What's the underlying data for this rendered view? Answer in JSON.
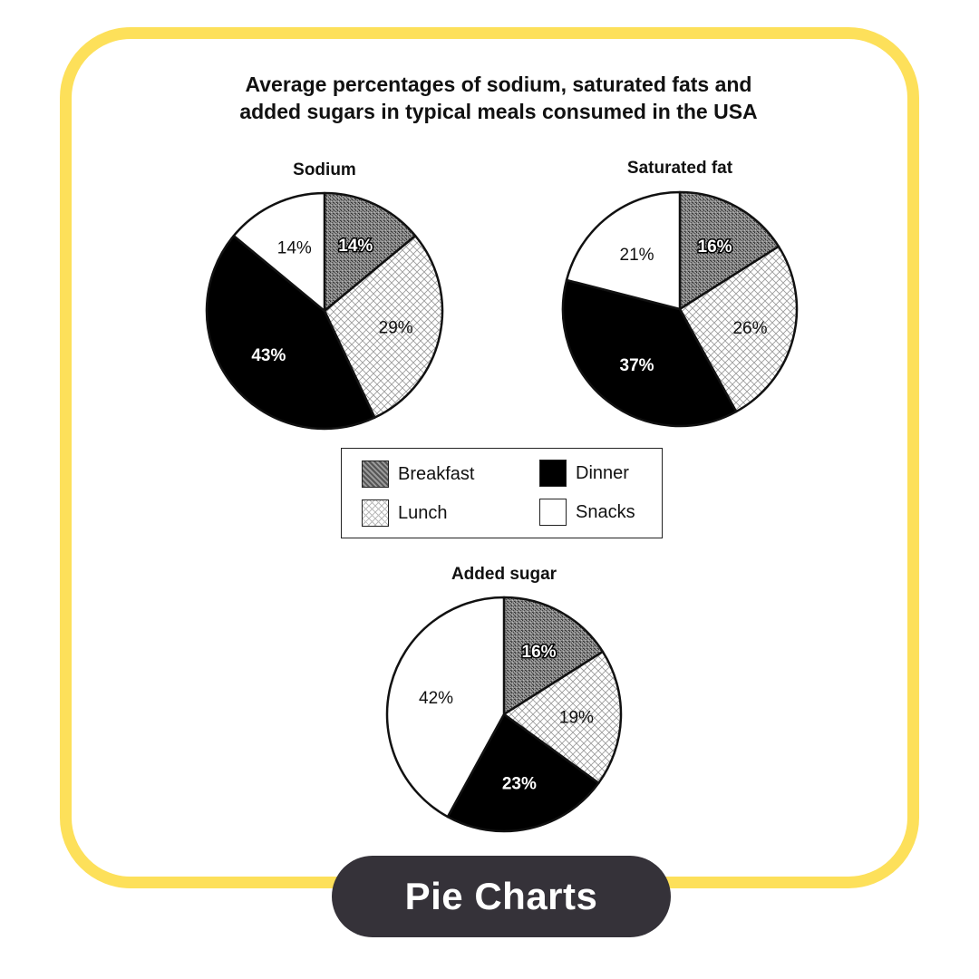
{
  "title_line1": "Average percentages of sodium, saturated fats and",
  "title_line2": "added sugars in typical meals consumed in the USA",
  "legend": {
    "breakfast": "Breakfast",
    "lunch": "Lunch",
    "dinner": "Dinner",
    "snacks": "Snacks"
  },
  "badge_label": "Pie Charts",
  "colors": {
    "frame": "#fde05a",
    "badge": "#353239",
    "dinner": "#000000",
    "snacks": "#ffffff"
  },
  "chart_data": [
    {
      "type": "pie",
      "title": "Sodium",
      "categories": [
        "Breakfast",
        "Lunch",
        "Dinner",
        "Snacks"
      ],
      "values": [
        14,
        29,
        43,
        14
      ],
      "labels": [
        "14%",
        "29%",
        "43%",
        "14%"
      ]
    },
    {
      "type": "pie",
      "title": "Saturated fat",
      "categories": [
        "Breakfast",
        "Lunch",
        "Dinner",
        "Snacks"
      ],
      "values": [
        16,
        26,
        37,
        21
      ],
      "labels": [
        "16%",
        "26%",
        "37%",
        "21%"
      ]
    },
    {
      "type": "pie",
      "title": "Added sugar",
      "categories": [
        "Breakfast",
        "Lunch",
        "Dinner",
        "Snacks"
      ],
      "values": [
        16,
        19,
        23,
        42
      ],
      "labels": [
        "16%",
        "19%",
        "23%",
        "42%"
      ]
    }
  ]
}
